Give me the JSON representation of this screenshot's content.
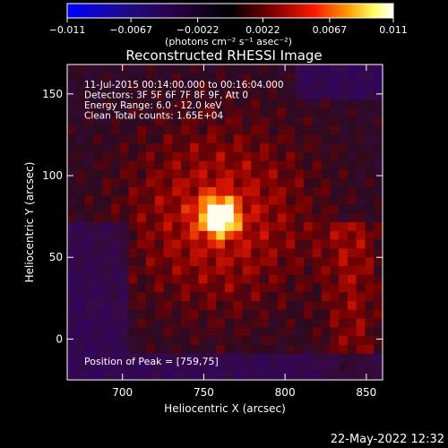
{
  "colorbar": {
    "tick_labels": [
      "−0.011",
      "−0.0067",
      "−0.0022",
      "0.0022",
      "0.0067",
      "0.011"
    ],
    "tick_values": [
      -0.011,
      -0.0067,
      -0.0022,
      0.0022,
      0.0067,
      0.011
    ],
    "range": [
      -0.011,
      0.011
    ],
    "units_label": "(photons cm⁻² s⁻¹ asec⁻²)",
    "colors": [
      "#0000ff",
      "#2a004a",
      "#000000",
      "#8a0000",
      "#ff1a00",
      "#ff9900",
      "#ffff66",
      "#ffffff"
    ]
  },
  "chart_data": {
    "type": "heatmap",
    "title": "Reconstructed RHESSI Image",
    "xlabel": "Heliocentric X (arcsec)",
    "ylabel": "Heliocentric Y (arcsec)",
    "xlim": [
      666,
      860
    ],
    "ylim": [
      -25,
      168
    ],
    "x_ticks": [
      700,
      750,
      800,
      850
    ],
    "y_ticks": [
      0,
      50,
      100,
      150
    ],
    "annotations": [
      "11-Jul-2015 00:14:00.000 to 00:16:04.000",
      "Detectors: 3F 5F 6F 7F 8F 9F, Att 0",
      "Energy Range: 6.0 - 12.0 keV",
      "Clean     Total counts: 1.65E+04"
    ],
    "peak_label": "Position of Peak = [759,75]",
    "peak": [
      759,
      75
    ],
    "grid": false
  },
  "footer": {
    "timestamp": "22-May-2022 12:32"
  }
}
